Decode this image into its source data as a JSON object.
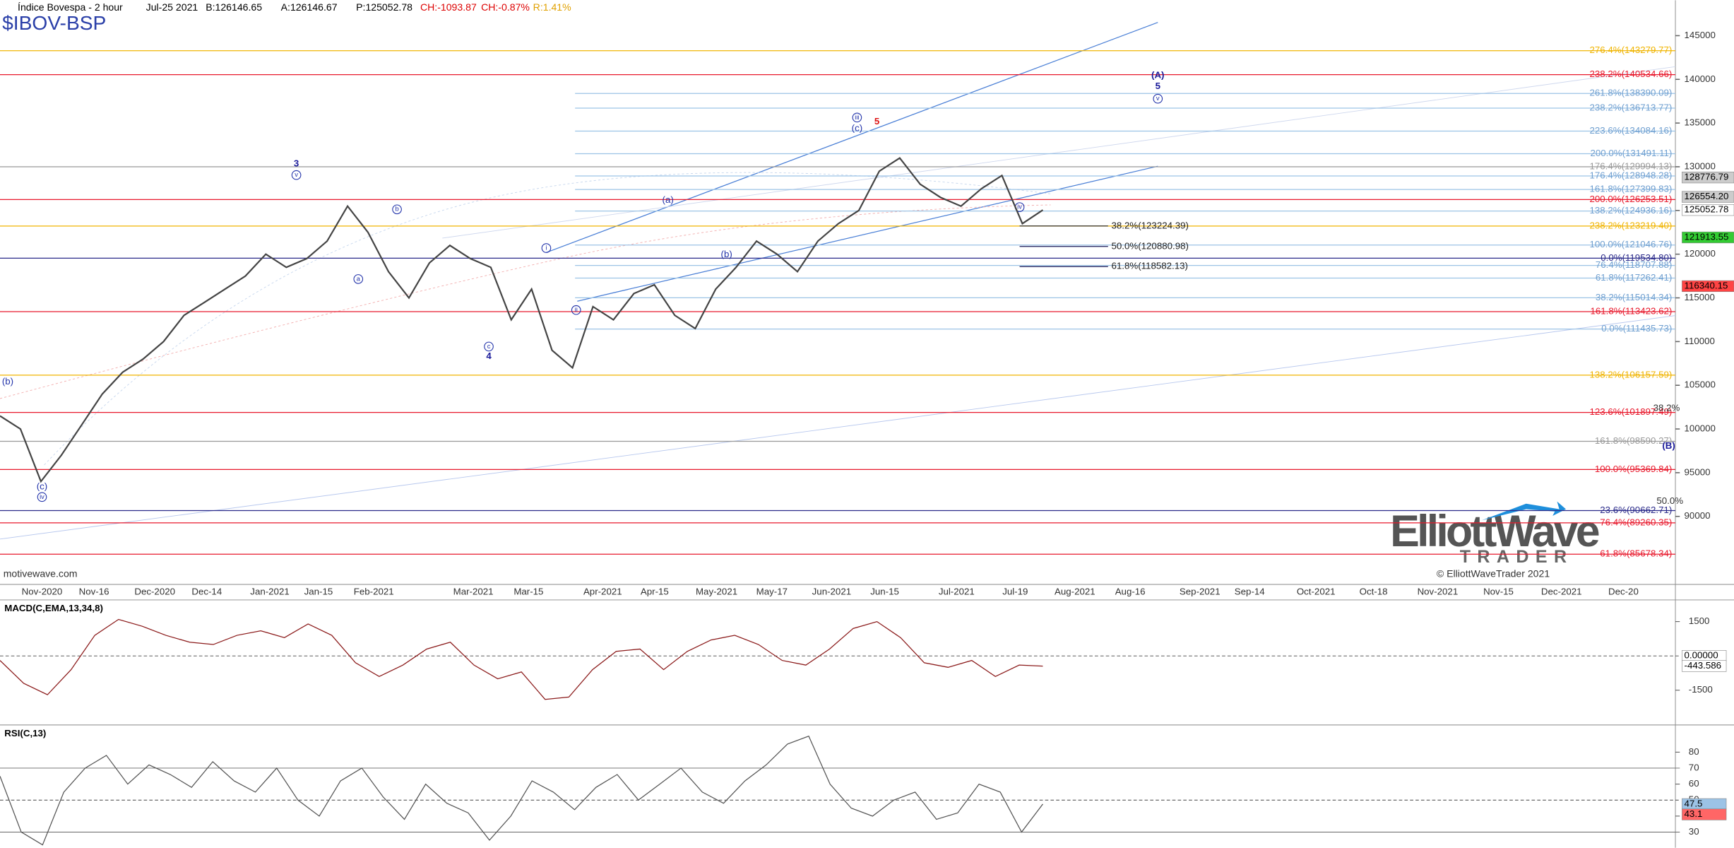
{
  "header": {
    "title": "Índice Bovespa - 2 hour",
    "date": "Jul-25 2021",
    "bid": "B:126146.65",
    "ask": "A:126146.67",
    "price": "P:125052.78",
    "change": "CH:-1093.87",
    "change_pct": "CH:-0.87%",
    "range": "R:1.41%",
    "symbol": "$IBOV-BSP",
    "source": "motivewave.com",
    "copyright": "© ElliottWaveTrader 2021",
    "logo_main": "ElliottWave",
    "logo_sub": "TRADER"
  },
  "chart_data": [
    {
      "type": "line",
      "name": "price",
      "x_labels": [
        "Nov-2020",
        "Nov-16",
        "Dec-2020",
        "Dec-14",
        "Jan-2021",
        "Jan-15",
        "Feb-2021",
        "Mar-2021",
        "Mar-15",
        "Apr-2021",
        "Apr-15",
        "May-2021",
        "May-17",
        "Jun-2021",
        "Jun-15",
        "Jul-2021",
        "Jul-19",
        "Aug-2021",
        "Aug-16",
        "Sep-2021",
        "Sep-14",
        "Oct-2021",
        "Oct-18",
        "Nov-2021",
        "Nov-15",
        "Dec-2021",
        "Dec-20"
      ],
      "series": [
        {
          "name": "Índice Bovespa",
          "color": "#444444",
          "values": [
            101500,
            100000,
            94000,
            97000,
            100500,
            104000,
            106500,
            108000,
            110000,
            113000,
            114500,
            116000,
            117500,
            120000,
            118500,
            119500,
            121500,
            125500,
            122500,
            118000,
            115000,
            119000,
            121000,
            119500,
            118500,
            112500,
            116000,
            109000,
            107000,
            114000,
            112500,
            115500,
            116500,
            113000,
            111500,
            116000,
            118500,
            121500,
            120000,
            118000,
            121500,
            123500,
            125000,
            129500,
            131000,
            128000,
            126500,
            125500,
            127500,
            129000,
            123500,
            125052.78
          ]
        }
      ],
      "ylim": [
        83228,
        149051
      ],
      "yticks": [
        90000,
        95000,
        100000,
        105000,
        110000,
        115000,
        120000,
        125000,
        130000,
        135000,
        140000,
        145000
      ],
      "fib_levels": [
        {
          "label": "276.4%(143279.77)",
          "value": 143279.77,
          "color": "#f0b400"
        },
        {
          "label": "238.2%(140534.66)",
          "value": 140534.66,
          "color": "#e8192c"
        },
        {
          "label": "261.8%(138390.09)",
          "value": 138390.09,
          "color": "#9cc3e6"
        },
        {
          "label": "238.2%(136713.77)",
          "value": 136713.77,
          "color": "#9cc3e6"
        },
        {
          "label": "223.6%(134084.16)",
          "value": 134084.16,
          "color": "#9cc3e6"
        },
        {
          "label": "200.0%(131491.11)",
          "value": 131491.11,
          "color": "#9cc3e6"
        },
        {
          "label": "176.4%(129994.13)",
          "value": 129994.13,
          "color": "#999999"
        },
        {
          "label": "176.4%(128948.28)",
          "value": 128948.28,
          "color": "#9cc3e6"
        },
        {
          "label": "161.8%(127399.83)",
          "value": 127399.83,
          "color": "#9cc3e6"
        },
        {
          "label": "200.0%(126253.51)",
          "value": 126253.51,
          "color": "#e8192c"
        },
        {
          "label": "138.2%(124936.16)",
          "value": 124936.16,
          "color": "#9cc3e6"
        },
        {
          "label": "238.2%(123219.40)",
          "value": 123219.4,
          "color": "#f0b400"
        },
        {
          "label": "100.0%(121046.76)",
          "value": 121046.76,
          "color": "#9cc3e6"
        },
        {
          "label": "0.0%(119534.80)",
          "value": 119534.8,
          "color": "#2a2a8a"
        },
        {
          "label": "76.4%(118707.88)",
          "value": 118707.88,
          "color": "#9cc3e6"
        },
        {
          "label": "61.8%(117262.41)",
          "value": 117262.41,
          "color": "#9cc3e6"
        },
        {
          "label": "38.2%(115014.34)",
          "value": 115014.34,
          "color": "#9cc3e6"
        },
        {
          "label": "161.8%(113423.62)",
          "value": 113423.62,
          "color": "#e8192c"
        },
        {
          "label": "0.0%(111435.73)",
          "value": 111435.73,
          "color": "#9cc3e6"
        },
        {
          "label": "138.2%(106157.59)",
          "value": 106157.59,
          "color": "#f0b400"
        },
        {
          "label": "123.6%(101897.49)",
          "value": 101897.49,
          "color": "#e8192c"
        },
        {
          "label": "161.8%(98590.27)",
          "value": 98590.27,
          "color": "#999999"
        },
        {
          "label": "100.0%(95369.84)",
          "value": 95369.84,
          "color": "#e8192c"
        },
        {
          "label": "23.6%(90662.71)",
          "value": 90662.71,
          "color": "#2a2a8a"
        },
        {
          "label": "76.4%(89260.35)",
          "value": 89260.35,
          "color": "#e8192c"
        },
        {
          "label": "61.8%(85678.34)",
          "value": 85678.34,
          "color": "#e8192c"
        }
      ],
      "retracements": [
        {
          "label": "38.2%(123224.39)",
          "value": 123224.39
        },
        {
          "label": "50.0%(120880.98)",
          "value": 120880.98
        },
        {
          "label": "61.8%(118582.13)",
          "value": 118582.13
        }
      ],
      "price_tags": [
        {
          "label": "128776.79",
          "value": 128776.79,
          "color": "#cccccc"
        },
        {
          "label": "126554.20",
          "value": 126554.2,
          "color": "#cccccc"
        },
        {
          "label": "125052.78",
          "value": 125052.78,
          "color": "#ffffff"
        },
        {
          "label": "121913.55",
          "value": 121913.55,
          "color": "#33cc33"
        },
        {
          "label": "116340.15",
          "value": 116340.15,
          "color": "#ff4444"
        }
      ],
      "wave_labels": [
        "(b)",
        "(c)",
        "iv",
        "3",
        "v",
        "a",
        "b",
        "c",
        "4",
        "i",
        "ii",
        "(a)",
        "(b)",
        "iii",
        "(c)",
        "5",
        "iv",
        "(A)",
        "5",
        "v",
        "(B)",
        "38.2%",
        "50.0%"
      ]
    },
    {
      "type": "line",
      "name": "macd",
      "title": "MACD(C,EMA,13,34,8)",
      "series": [
        {
          "name": "MACD",
          "color": "#8b1a1a",
          "values": [
            -200,
            -1200,
            -1700,
            -600,
            900,
            1600,
            1300,
            900,
            600,
            500,
            900,
            1100,
            800,
            1400,
            900,
            -300,
            -900,
            -400,
            300,
            600,
            -400,
            -1000,
            -700,
            -1900,
            -1800,
            -600,
            200,
            300,
            -600,
            200,
            700,
            900,
            500,
            -200,
            -400,
            300,
            1200,
            1500,
            800,
            -300,
            -500,
            -200,
            -900,
            -400,
            -443.586
          ]
        }
      ],
      "ylim": [
        -3020,
        2450
      ],
      "yticks": [
        -1500,
        0,
        1500
      ],
      "tags": [
        {
          "label": "0.00000",
          "value": 0
        },
        {
          "label": "-443.586",
          "value": -443.586
        }
      ]
    },
    {
      "type": "line",
      "name": "rsi",
      "title": "RSI(C,13)",
      "series": [
        {
          "name": "RSI",
          "color": "#555555",
          "values": [
            65,
            30,
            22,
            55,
            70,
            78,
            60,
            72,
            66,
            58,
            74,
            62,
            55,
            70,
            50,
            40,
            62,
            70,
            52,
            38,
            60,
            48,
            42,
            25,
            40,
            62,
            55,
            44,
            58,
            66,
            50,
            60,
            70,
            55,
            48,
            62,
            72,
            85,
            90,
            60,
            45,
            40,
            50,
            55,
            38,
            42,
            60,
            55,
            30,
            47.5
          ]
        }
      ],
      "ylim": [
        20.2,
        97
      ],
      "yticks": [
        30,
        40,
        50,
        60,
        70,
        80
      ],
      "tags": [
        {
          "label": "47.5",
          "value": 47.5
        },
        {
          "label": "43.1",
          "value": 43.1
        }
      ]
    }
  ]
}
